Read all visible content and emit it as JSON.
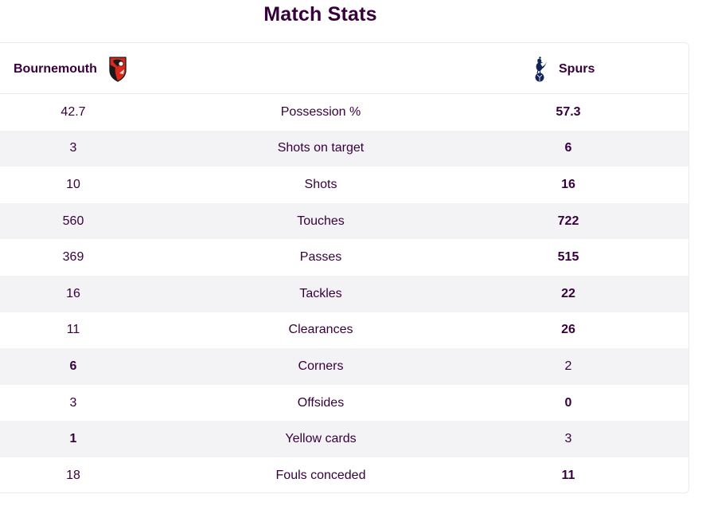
{
  "page": {
    "title": "Match Stats"
  },
  "teams": {
    "home": {
      "name": "Bournemouth",
      "crest_icon": "bournemouth-crest-icon",
      "color": "#da291c"
    },
    "away": {
      "name": "Spurs",
      "crest_icon": "spurs-cockerel-icon",
      "color": "#132257"
    }
  },
  "stats": [
    {
      "label": "Possession %",
      "home": "42.7",
      "away": "57.3",
      "leader": "away"
    },
    {
      "label": "Shots on target",
      "home": "3",
      "away": "6",
      "leader": "away"
    },
    {
      "label": "Shots",
      "home": "10",
      "away": "16",
      "leader": "away"
    },
    {
      "label": "Touches",
      "home": "560",
      "away": "722",
      "leader": "away"
    },
    {
      "label": "Passes",
      "home": "369",
      "away": "515",
      "leader": "away"
    },
    {
      "label": "Tackles",
      "home": "16",
      "away": "22",
      "leader": "away"
    },
    {
      "label": "Clearances",
      "home": "11",
      "away": "26",
      "leader": "away"
    },
    {
      "label": "Corners",
      "home": "6",
      "away": "2",
      "leader": "home"
    },
    {
      "label": "Offsides",
      "home": "3",
      "away": "0",
      "leader": "away"
    },
    {
      "label": "Yellow cards",
      "home": "1",
      "away": "3",
      "leader": "home"
    },
    {
      "label": "Fouls conceded",
      "home": "18",
      "away": "11",
      "leader": "away"
    }
  ],
  "colors": {
    "text": "#37003c",
    "row_alt": "#f3f2f5",
    "border": "#ebebeb"
  }
}
